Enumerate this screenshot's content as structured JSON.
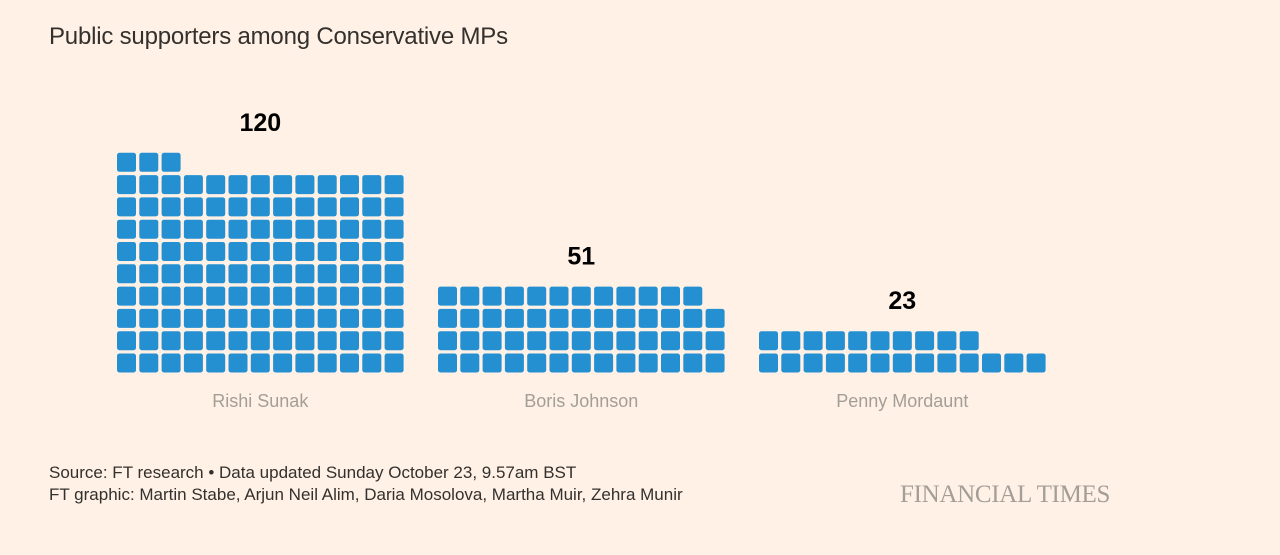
{
  "header": {
    "title": "Public supporters among Conservative MPs"
  },
  "chart_data": {
    "type": "waffle",
    "title": "Public supporters among Conservative MPs",
    "unit": "MPs (one square = one MP)",
    "columns": 13,
    "categories": [
      "Rishi Sunak",
      "Boris Johnson",
      "Penny Mordaunt"
    ],
    "values": [
      120,
      51,
      23
    ],
    "value_labels": [
      "120",
      "51",
      "23"
    ]
  },
  "footer": {
    "source": "Source: FT research • Data updated Sunday October 23, 9.57am BST",
    "credits": "FT graphic: Martin Stabe, Arjun Neil Alim, Daria Mosolova, Martha Muir, Zehra Munir",
    "logo": "FINANCIAL TIMES"
  },
  "colors": {
    "background": "#fff1e5",
    "square": "#2490d1",
    "value_label": "#000000",
    "category_label": "#a39e97",
    "text": "#33302e"
  }
}
